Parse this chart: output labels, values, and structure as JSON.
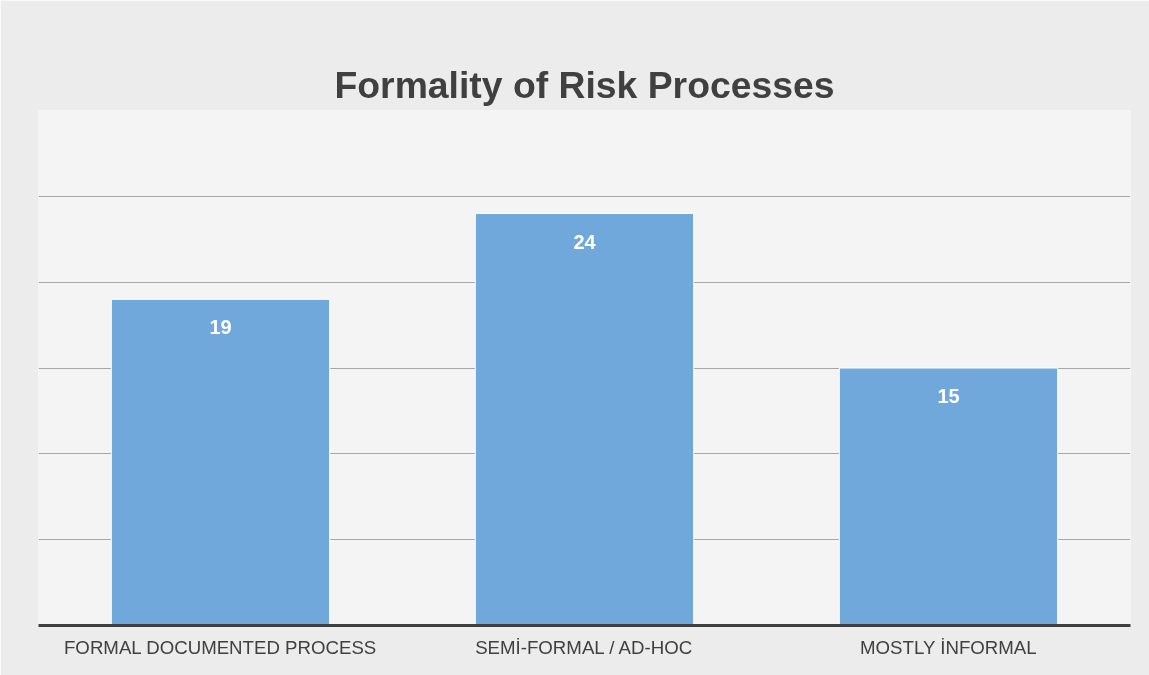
{
  "chart_data": {
    "type": "bar",
    "title": "Formality of Risk Processes",
    "categories": [
      "FORMAL DOCUMENTED PROCESS",
      "SEMİ-FORMAL / AD-HOC",
      "MOSTLY İNFORMAL"
    ],
    "values": [
      19,
      24,
      15
    ],
    "color": "#70a8db",
    "ylim": [
      0,
      30
    ],
    "yticks": [
      0,
      {
        "value": 5,
        "label": null
      },
      {
        "value": 10,
        "label": null
      },
      {
        "value": 15,
        "label": null
      },
      {
        "value": 20,
        "label": null
      },
      {
        "value": 25,
        "label": null
      },
      {
        "value": 30,
        "label": null
      }
    ],
    "tick_labels": "x",
    "grid": "y",
    "data_labels": true
  }
}
